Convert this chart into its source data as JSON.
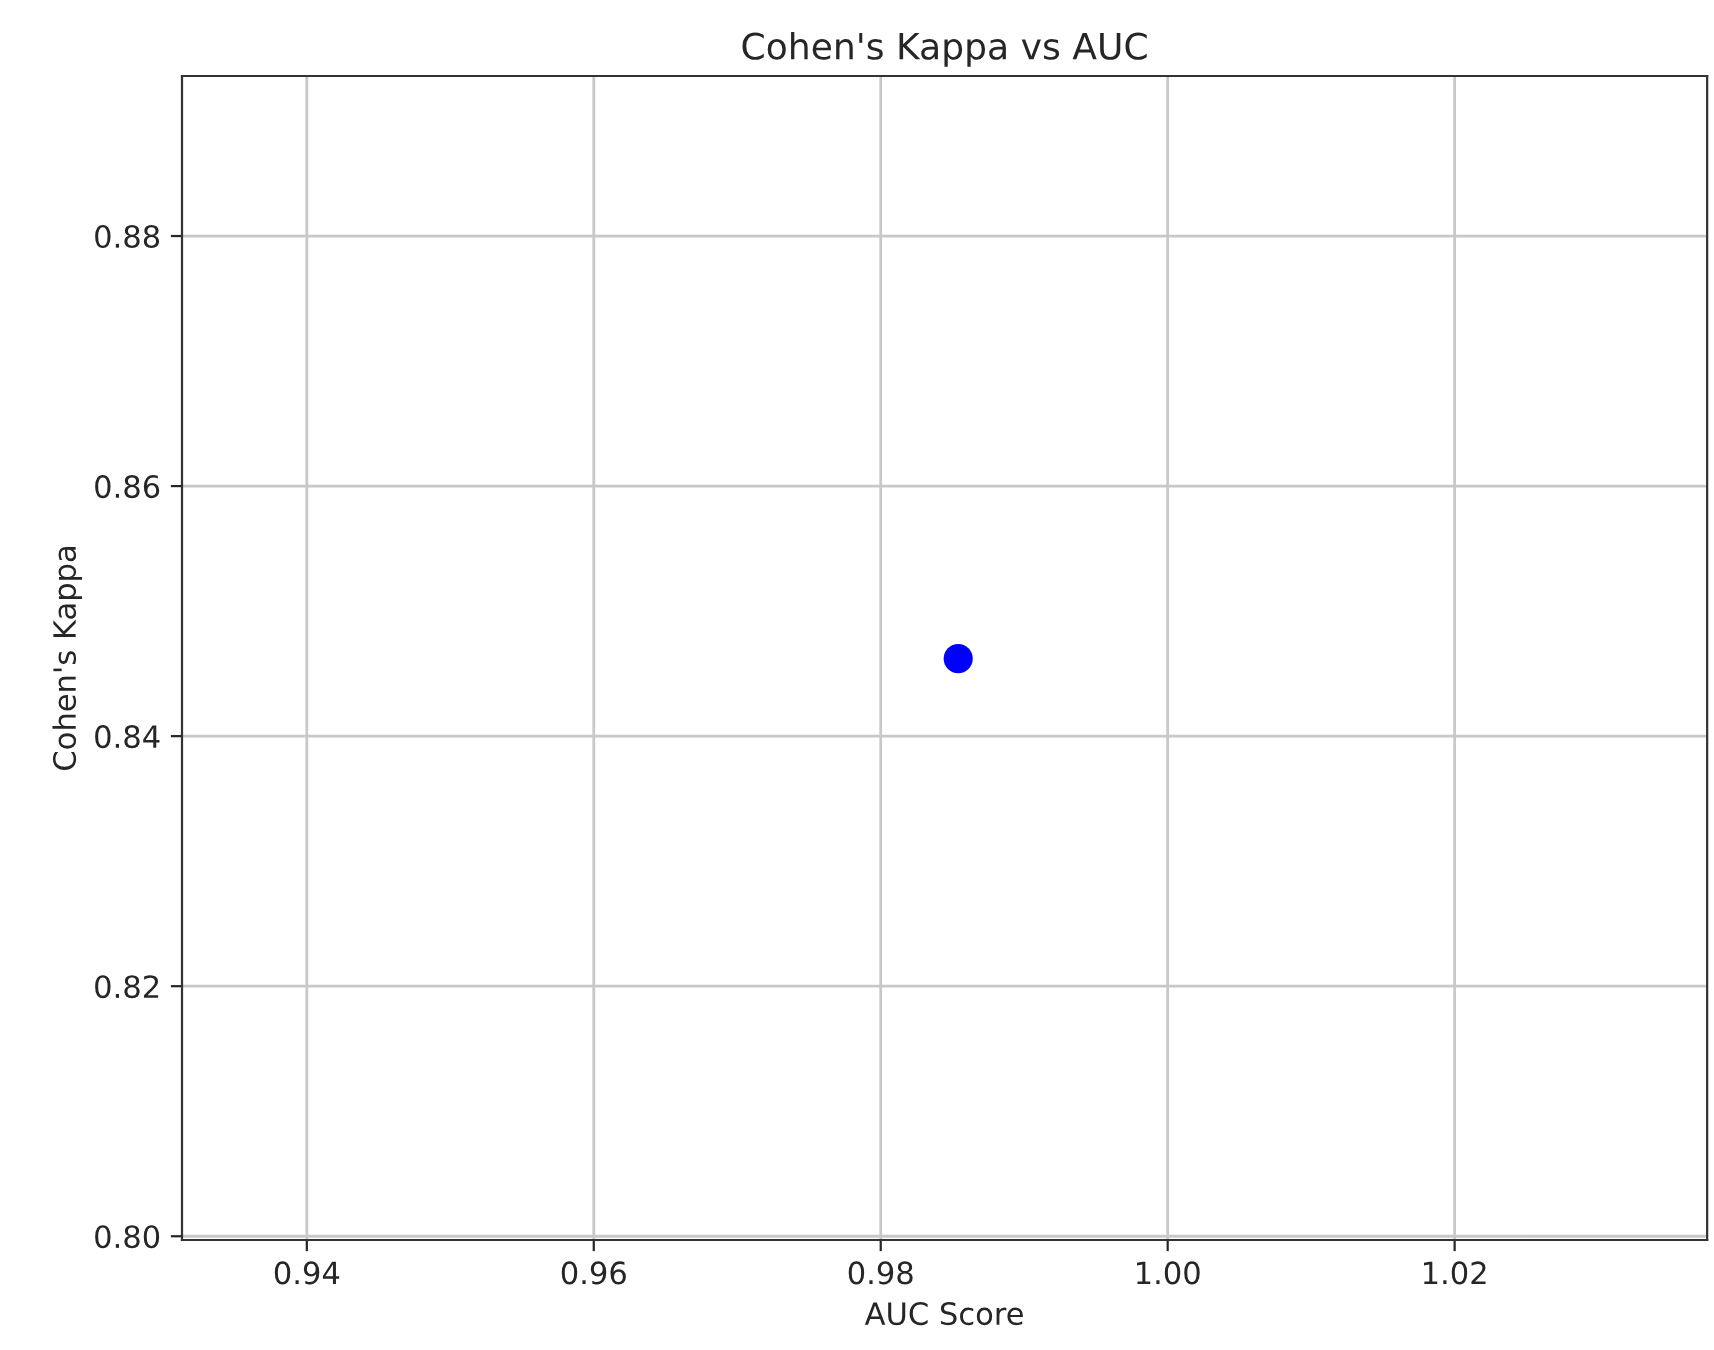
{
  "chart_data": {
    "type": "scatter",
    "title": "Cohen's Kappa vs AUC",
    "xlabel": "AUC Score",
    "ylabel": "Cohen's Kappa",
    "x": [
      0.9854
    ],
    "series": [
      {
        "color": "#0000ff",
        "values": [
          0.8462
        ]
      }
    ],
    "xlim": [
      0.9313,
      1.0376
    ],
    "xticks": [
      {
        "value": 0.94,
        "label": "0.94"
      },
      {
        "value": 0.96,
        "label": "0.96"
      },
      {
        "value": 0.98,
        "label": "0.98"
      },
      {
        "value": 1.0,
        "label": "1.00"
      },
      {
        "value": 1.02,
        "label": "1.02"
      }
    ],
    "ylim": [
      0.7997,
      0.8928
    ],
    "yticks": [
      {
        "value": 0.8,
        "label": "0.80"
      },
      {
        "value": 0.82,
        "label": "0.82"
      },
      {
        "value": 0.84,
        "label": "0.84"
      },
      {
        "value": 0.86,
        "label": "0.86"
      },
      {
        "value": 0.88,
        "label": "0.88"
      }
    ],
    "grid": true,
    "marker": "circle"
  }
}
